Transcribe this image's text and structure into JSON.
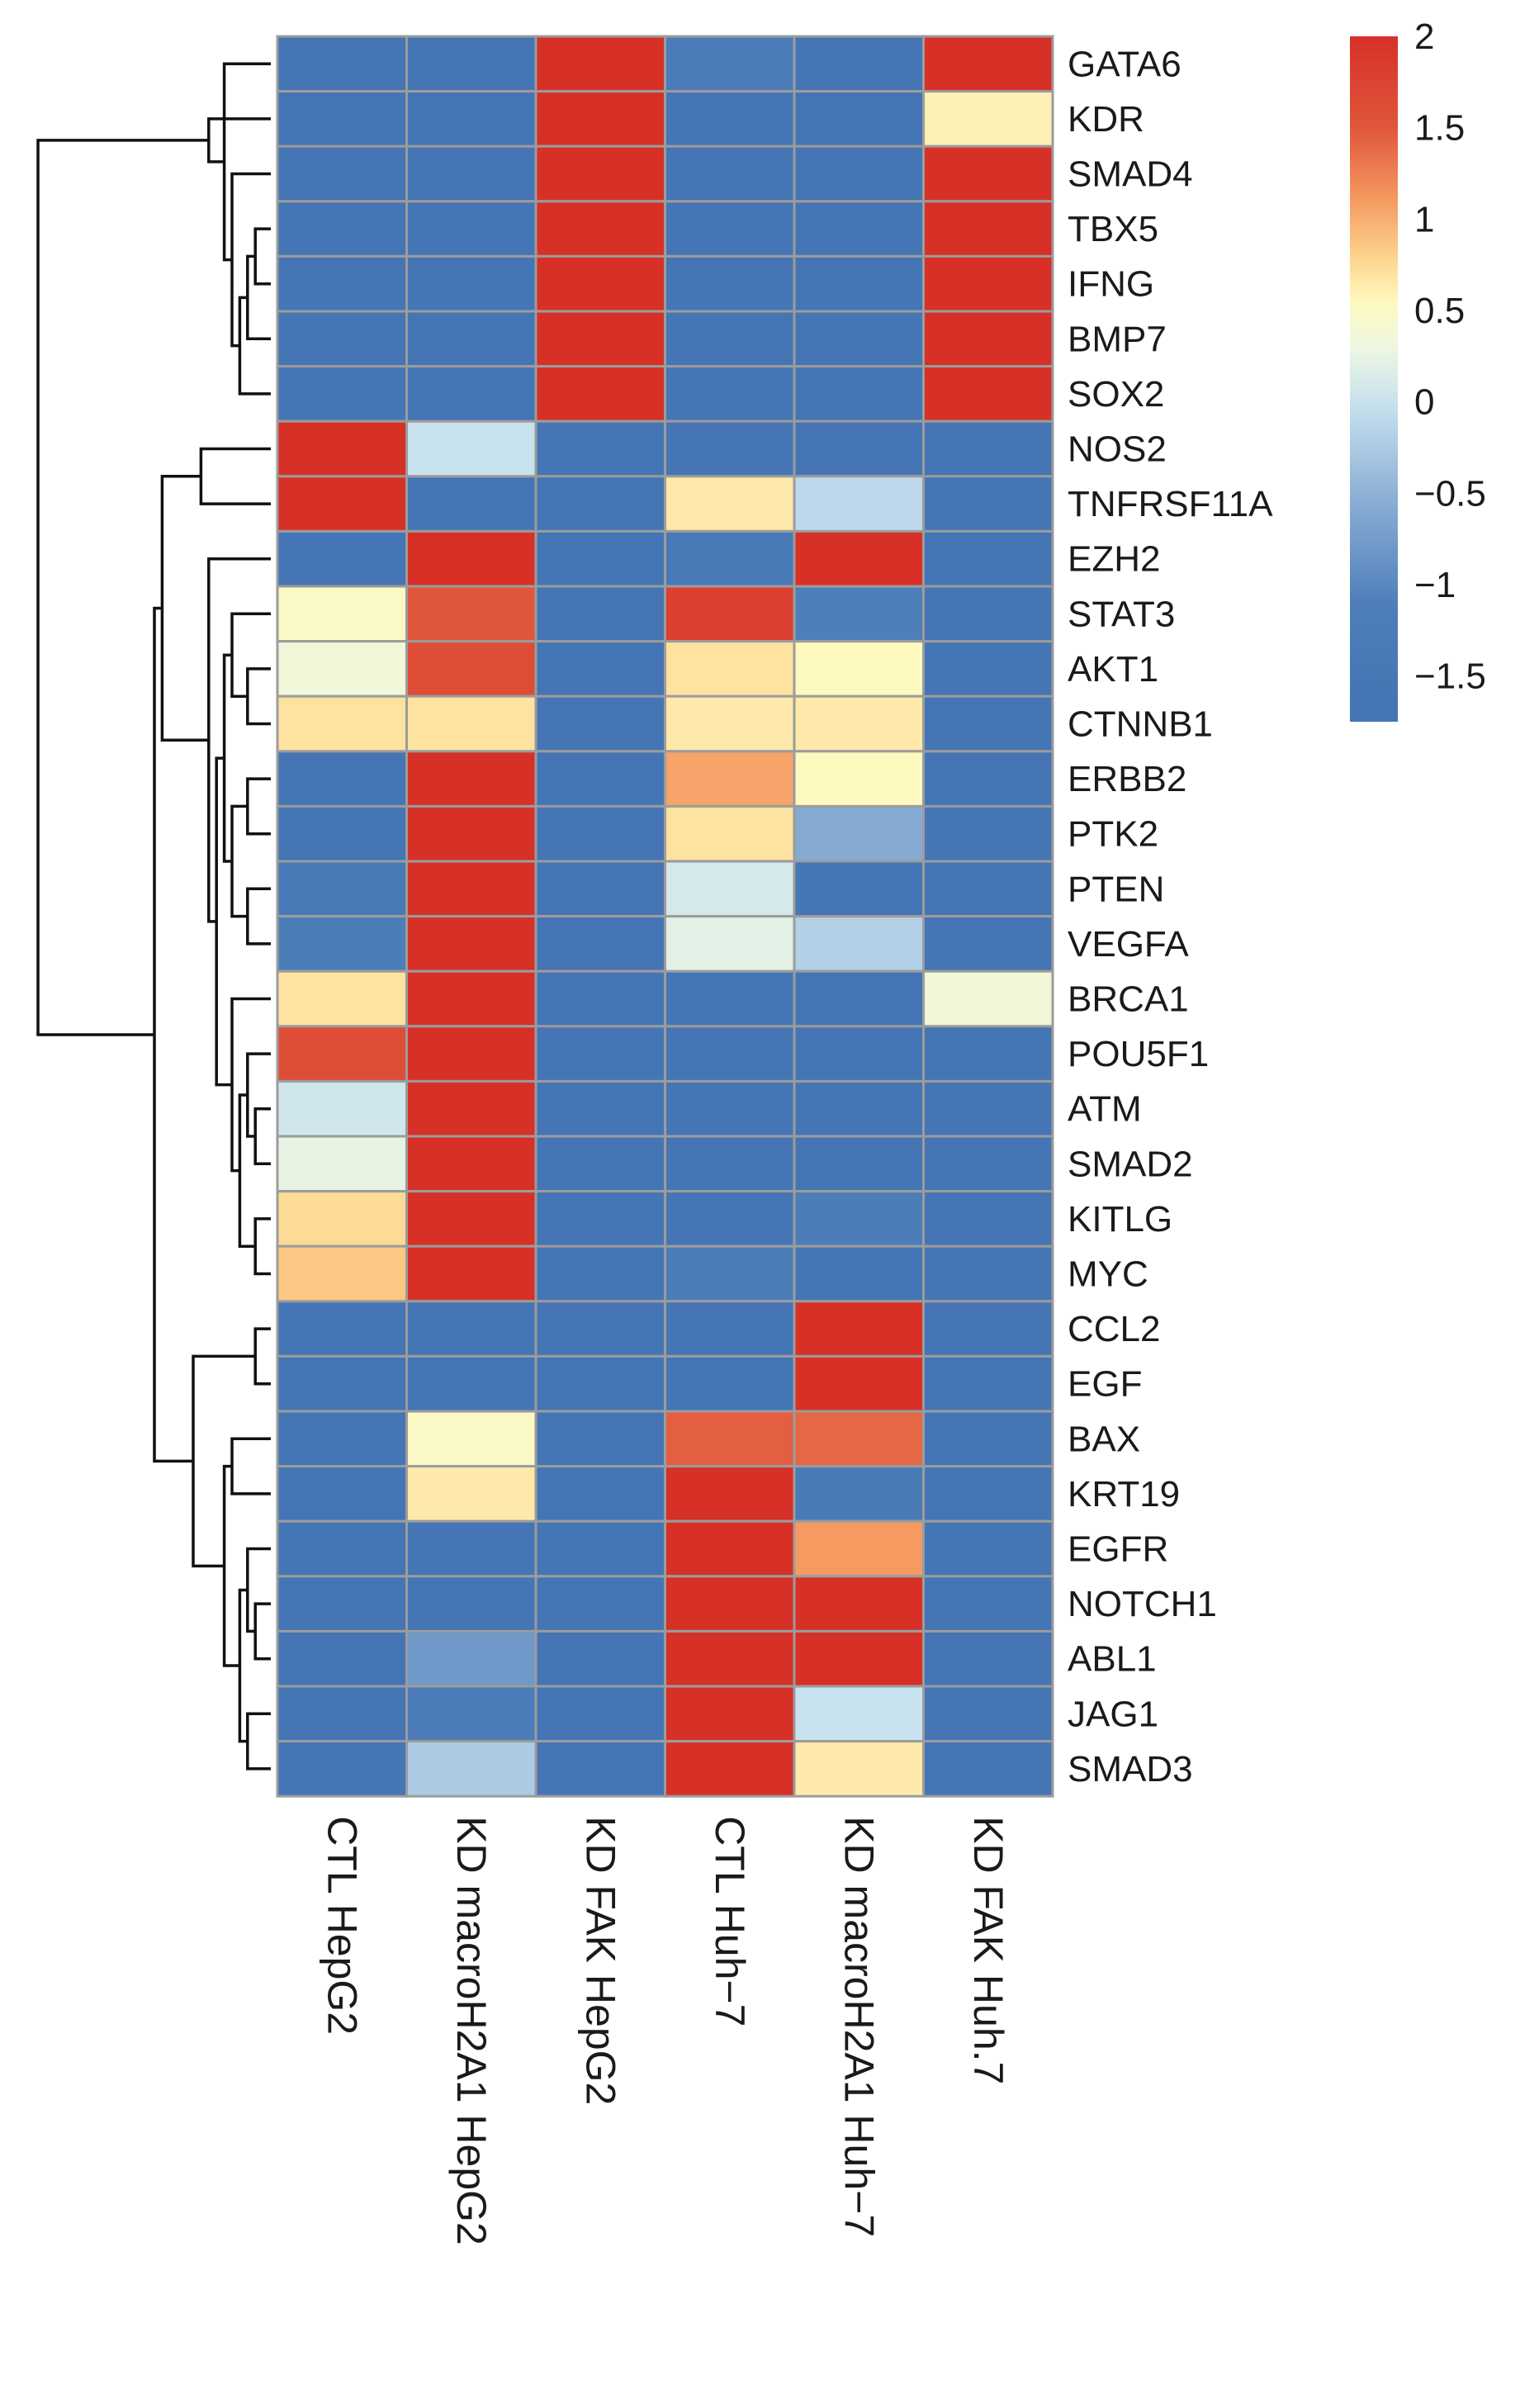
{
  "chart_data": {
    "type": "heatmap",
    "title": "",
    "rows": [
      "GATA6",
      "KDR",
      "SMAD4",
      "TBX5",
      "IFNG",
      "BMP7",
      "SOX2",
      "NOS2",
      "TNFRSF11A",
      "EZH2",
      "STAT3",
      "AKT1",
      "CTNNB1",
      "ERBB2",
      "PTK2",
      "PTEN",
      "VEGFA",
      "BRCA1",
      "POU5F1",
      "ATM",
      "SMAD2",
      "KITLG",
      "MYC",
      "CCL2",
      "EGF",
      "BAX",
      "KRT19",
      "EGFR",
      "NOTCH1",
      "ABL1",
      "JAG1",
      "SMAD3"
    ],
    "columns": [
      "CTL HepG2",
      "KD macroH2A1 HepG2",
      "KD FAK HepG2",
      "CTL Huh−7",
      "KD macroH2A1 Huh−7",
      "KD FAK Huh.7"
    ],
    "values": [
      [
        -1.6,
        -1.6,
        2.0,
        -1.3,
        -1.6,
        2.0
      ],
      [
        -1.6,
        -1.6,
        2.0,
        -1.6,
        -1.6,
        0.6
      ],
      [
        -1.6,
        -1.6,
        2.0,
        -1.6,
        -1.6,
        2.0
      ],
      [
        -1.6,
        -1.6,
        2.0,
        -1.6,
        -1.6,
        2.0
      ],
      [
        -1.6,
        -1.6,
        2.0,
        -1.6,
        -1.6,
        2.0
      ],
      [
        -1.6,
        -1.6,
        2.0,
        -1.6,
        -1.6,
        2.0
      ],
      [
        -1.6,
        -1.6,
        2.0,
        -1.6,
        -1.6,
        2.0
      ],
      [
        2.0,
        0.0,
        -1.6,
        -1.6,
        -1.6,
        -1.6
      ],
      [
        2.0,
        -1.6,
        -1.6,
        0.65,
        -0.1,
        -1.6
      ],
      [
        -1.6,
        2.0,
        -1.6,
        -1.4,
        2.0,
        -1.6
      ],
      [
        0.5,
        1.5,
        -1.6,
        1.8,
        -1.1,
        -1.6
      ],
      [
        0.35,
        1.6,
        -1.6,
        0.7,
        0.55,
        -1.6
      ],
      [
        0.7,
        0.7,
        -1.6,
        0.65,
        0.65,
        -1.6
      ],
      [
        -1.6,
        2.0,
        -1.6,
        1.05,
        0.55,
        -1.6
      ],
      [
        -1.6,
        2.0,
        -1.6,
        0.7,
        -0.6,
        -1.6
      ],
      [
        -1.4,
        2.0,
        -1.6,
        0.1,
        -1.6,
        -1.6
      ],
      [
        -1.2,
        2.0,
        -1.6,
        0.2,
        -0.2,
        -1.6
      ],
      [
        0.7,
        2.0,
        -1.6,
        -1.6,
        -1.6,
        0.35
      ],
      [
        1.6,
        2.0,
        -1.6,
        -1.6,
        -1.6,
        -1.6
      ],
      [
        0.05,
        2.0,
        -1.6,
        -1.6,
        -1.6,
        -1.6
      ],
      [
        0.25,
        2.0,
        -1.6,
        -1.6,
        -1.6,
        -1.6
      ],
      [
        0.75,
        2.0,
        -1.6,
        -1.6,
        -1.2,
        -1.6
      ],
      [
        0.85,
        2.0,
        -1.6,
        -1.2,
        -1.6,
        -1.6
      ],
      [
        -1.6,
        -1.6,
        -1.6,
        -1.6,
        2.0,
        -1.6
      ],
      [
        -1.6,
        -1.6,
        -1.6,
        -1.6,
        2.0,
        -1.6
      ],
      [
        -1.6,
        0.5,
        -1.6,
        1.45,
        1.4,
        -1.6
      ],
      [
        -1.6,
        0.65,
        -1.6,
        2.0,
        -1.35,
        -1.6
      ],
      [
        -1.6,
        -1.6,
        -1.6,
        2.0,
        1.1,
        -1.6
      ],
      [
        -1.6,
        -1.6,
        -1.6,
        2.0,
        2.0,
        -1.6
      ],
      [
        -1.6,
        -0.8,
        -1.6,
        2.0,
        2.0,
        -1.6
      ],
      [
        -1.6,
        -1.3,
        -1.6,
        2.0,
        0.0,
        -1.6
      ],
      [
        -1.6,
        -0.25,
        -1.6,
        2.0,
        0.65,
        -1.6
      ]
    ],
    "color_scale": {
      "min": -1.6,
      "max": 2.0,
      "stops": [
        {
          "v": -1.6,
          "c": "#4575b4"
        },
        {
          "v": -1.1,
          "c": "#4f7fba"
        },
        {
          "v": -0.5,
          "c": "#8fb2d6"
        },
        {
          "v": 0.0,
          "c": "#c9e2ef"
        },
        {
          "v": 0.3,
          "c": "#eef7e0"
        },
        {
          "v": 0.55,
          "c": "#fef9bf"
        },
        {
          "v": 0.8,
          "c": "#fdd28b"
        },
        {
          "v": 1.1,
          "c": "#f59b62"
        },
        {
          "v": 1.5,
          "c": "#e0563b"
        },
        {
          "v": 2.0,
          "c": "#d73027"
        }
      ]
    },
    "legend": {
      "ticks": [
        2,
        1.5,
        1,
        0.5,
        0,
        -0.5,
        -1,
        -1.5
      ],
      "tick_labels": [
        "2",
        "1.5",
        "1",
        "0.5",
        "0",
        "−0.5",
        "−1",
        "−1.5"
      ],
      "range": [
        -1.75,
        2.0
      ]
    },
    "row_dendrogram": {
      "leaf_order": "rows",
      "merges": [
        {
          "a": 3,
          "b": 4,
          "h": 0.02
        },
        {
          "a": "m0",
          "b": 5,
          "h": 0.03
        },
        {
          "a": "m1",
          "b": 6,
          "h": 0.04
        },
        {
          "a": 2,
          "b": "m2",
          "h": 0.05
        },
        {
          "a": 0,
          "b": "m3",
          "h": 0.06
        },
        {
          "a": "m4",
          "b": 1,
          "h": 0.08
        },
        {
          "a": 7,
          "b": 8,
          "h": 0.09
        },
        {
          "a": 11,
          "b": 12,
          "h": 0.03
        },
        {
          "a": 10,
          "b": "m7",
          "h": 0.05
        },
        {
          "a": 13,
          "b": 14,
          "h": 0.03
        },
        {
          "a": 15,
          "b": 16,
          "h": 0.03
        },
        {
          "a": "m9",
          "b": "m10",
          "h": 0.05
        },
        {
          "a": "m8",
          "b": "m11",
          "h": 0.06
        },
        {
          "a": 19,
          "b": 20,
          "h": 0.02
        },
        {
          "a": "m13",
          "b": 18,
          "h": 0.03
        },
        {
          "a": 21,
          "b": 22,
          "h": 0.02
        },
        {
          "a": "m14",
          "b": "m15",
          "h": 0.04
        },
        {
          "a": 17,
          "b": "m16",
          "h": 0.05
        },
        {
          "a": "m12",
          "b": "m17",
          "h": 0.07
        },
        {
          "a": 9,
          "b": "m18",
          "h": 0.08
        },
        {
          "a": "m6",
          "b": "m19",
          "h": 0.14
        },
        {
          "a": 23,
          "b": 24,
          "h": 0.02
        },
        {
          "a": 25,
          "b": 26,
          "h": 0.05
        },
        {
          "a": 28,
          "b": 29,
          "h": 0.02
        },
        {
          "a": 27,
          "b": "m23",
          "h": 0.03
        },
        {
          "a": 30,
          "b": 31,
          "h": 0.03
        },
        {
          "a": "m24",
          "b": "m25",
          "h": 0.04
        },
        {
          "a": "m22",
          "b": "m26",
          "h": 0.06
        },
        {
          "a": "m21",
          "b": "m27",
          "h": 0.1
        },
        {
          "a": "m20",
          "b": "m28",
          "h": 0.15
        },
        {
          "a": "m5",
          "b": "m29",
          "h": 0.3
        }
      ]
    }
  }
}
